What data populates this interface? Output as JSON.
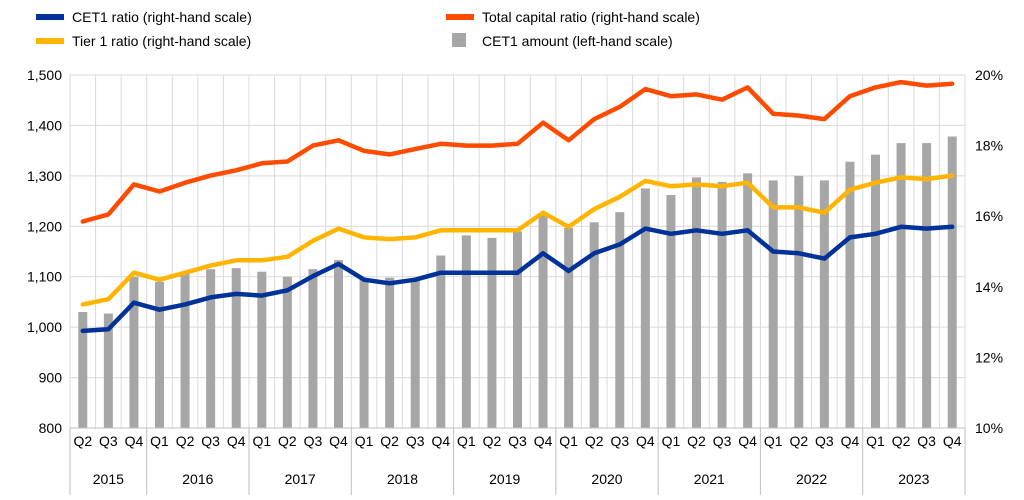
{
  "chart_data": {
    "type": "bar+line",
    "title": "",
    "categories": [
      "Q2",
      "Q3",
      "Q4",
      "Q1",
      "Q2",
      "Q3",
      "Q4",
      "Q1",
      "Q2",
      "Q3",
      "Q4",
      "Q1",
      "Q2",
      "Q3",
      "Q4",
      "Q1",
      "Q2",
      "Q3",
      "Q4",
      "Q1",
      "Q2",
      "Q3",
      "Q4",
      "Q1",
      "Q2",
      "Q3",
      "Q4",
      "Q1",
      "Q2",
      "Q3",
      "Q4",
      "Q1",
      "Q2",
      "Q3",
      "Q4"
    ],
    "years": [
      {
        "label": "2015",
        "span": 3
      },
      {
        "label": "2016",
        "span": 4
      },
      {
        "label": "2017",
        "span": 4
      },
      {
        "label": "2018",
        "span": 4
      },
      {
        "label": "2019",
        "span": 4
      },
      {
        "label": "2020",
        "span": 4
      },
      {
        "label": "2021",
        "span": 4
      },
      {
        "label": "2022",
        "span": 4
      },
      {
        "label": "2023",
        "span": 4
      }
    ],
    "left_axis": {
      "ylim": [
        800,
        1500
      ],
      "ticks": [
        "800",
        "900",
        "1,000",
        "1,100",
        "1,200",
        "1,300",
        "1,400",
        "1,500"
      ]
    },
    "right_axis": {
      "ylim": [
        10,
        20
      ],
      "ticks": [
        "10%",
        "12%",
        "14%",
        "16%",
        "18%",
        "20%"
      ]
    },
    "grid": true,
    "legend_position": "top",
    "bars": {
      "name": "CET1 amount (left-hand scale)",
      "color": "#a6a6a6",
      "axis": "left",
      "values": [
        1030,
        1027,
        1100,
        1090,
        1108,
        1115,
        1117,
        1110,
        1100,
        1115,
        1133,
        1095,
        1098,
        1092,
        1142,
        1182,
        1177,
        1190,
        1225,
        1197,
        1208,
        1228,
        1275,
        1262,
        1297,
        1288,
        1305,
        1291,
        1300,
        1291,
        1328,
        1342,
        1365,
        1365,
        1378
      ]
    },
    "series": [
      {
        "name": "CET1 ratio (right-hand scale)",
        "color": "#003299",
        "axis": "right",
        "values": [
          12.75,
          12.8,
          13.55,
          13.35,
          13.5,
          13.7,
          13.8,
          13.75,
          13.9,
          14.3,
          14.65,
          14.2,
          14.1,
          14.2,
          14.4,
          14.4,
          14.4,
          14.4,
          14.95,
          14.45,
          14.95,
          15.2,
          15.65,
          15.5,
          15.6,
          15.5,
          15.6,
          15.0,
          14.95,
          14.8,
          15.4,
          15.5,
          15.7,
          15.65,
          15.7
        ]
      },
      {
        "name": "Total capital ratio (right-hand scale)",
        "color": "#ff4b00",
        "axis": "right",
        "values": [
          15.85,
          16.05,
          16.9,
          16.7,
          16.95,
          17.15,
          17.3,
          17.5,
          17.55,
          18.0,
          18.15,
          17.85,
          17.75,
          17.9,
          18.05,
          18.0,
          18.0,
          18.05,
          18.65,
          18.15,
          18.75,
          19.1,
          19.6,
          19.4,
          19.45,
          19.3,
          19.65,
          18.9,
          18.85,
          18.75,
          19.4,
          19.65,
          19.8,
          19.7,
          19.75
        ]
      },
      {
        "name": "Tier 1 ratio (right-hand scale)",
        "color": "#ffb400",
        "axis": "right",
        "values": [
          13.5,
          13.65,
          14.4,
          14.2,
          14.4,
          14.6,
          14.75,
          14.75,
          14.85,
          15.3,
          15.65,
          15.4,
          15.35,
          15.4,
          15.6,
          15.6,
          15.6,
          15.6,
          16.1,
          15.7,
          16.2,
          16.55,
          17.0,
          16.85,
          16.9,
          16.85,
          16.95,
          16.25,
          16.25,
          16.1,
          16.75,
          16.95,
          17.1,
          17.05,
          17.15
        ]
      }
    ]
  }
}
